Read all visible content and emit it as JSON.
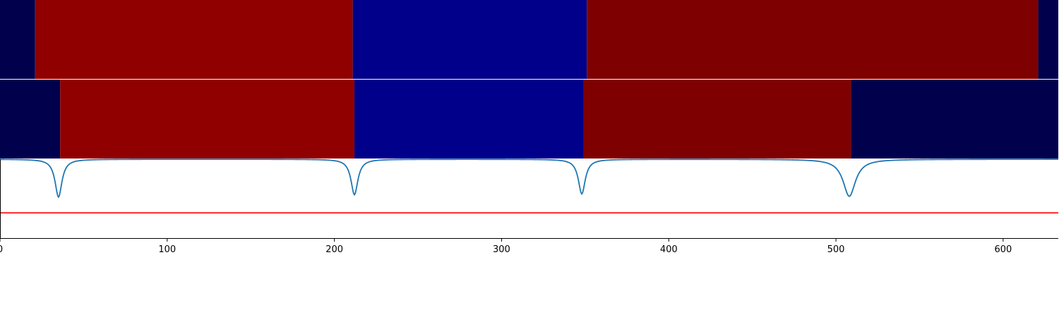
{
  "chart_data": {
    "type": "segmentation-plot",
    "x_range": [
      0,
      633
    ],
    "x_ticks": [
      0,
      100,
      200,
      300,
      400,
      500,
      600
    ],
    "x_tick_labels": [
      "0",
      "100",
      "200",
      "300",
      "400",
      "500",
      "600"
    ],
    "colors": {
      "dark_navy": "#00004d",
      "red": "#910000",
      "blue": "#00008a",
      "maroon": "#7f0000",
      "curve": "#1f77b4",
      "threshold": "#ff0000"
    },
    "segment_rows": [
      {
        "segments": [
          {
            "start": 0,
            "end": 21,
            "color": "dark_navy"
          },
          {
            "start": 21,
            "end": 211,
            "color": "red"
          },
          {
            "start": 211,
            "end": 351,
            "color": "blue"
          },
          {
            "start": 351,
            "end": 621,
            "color": "maroon"
          },
          {
            "start": 621,
            "end": 633,
            "color": "dark_navy"
          }
        ]
      },
      {
        "segments": [
          {
            "start": 0,
            "end": 36,
            "color": "dark_navy"
          },
          {
            "start": 36,
            "end": 212,
            "color": "red"
          },
          {
            "start": 212,
            "end": 349,
            "color": "blue"
          },
          {
            "start": 349,
            "end": 509,
            "color": "maroon"
          },
          {
            "start": 509,
            "end": 633,
            "color": "dark_navy"
          }
        ]
      }
    ],
    "curve": {
      "baseline": 0.0,
      "ylim": [
        -1.0,
        0.0
      ],
      "dips": [
        {
          "x": 35,
          "depth": 0.48,
          "width": 2.5
        },
        {
          "x": 212,
          "depth": 0.45,
          "width": 2.5
        },
        {
          "x": 348,
          "depth": 0.44,
          "width": 2.5
        },
        {
          "x": 508,
          "depth": 0.47,
          "width": 4.5
        }
      ]
    },
    "threshold": -0.68
  }
}
